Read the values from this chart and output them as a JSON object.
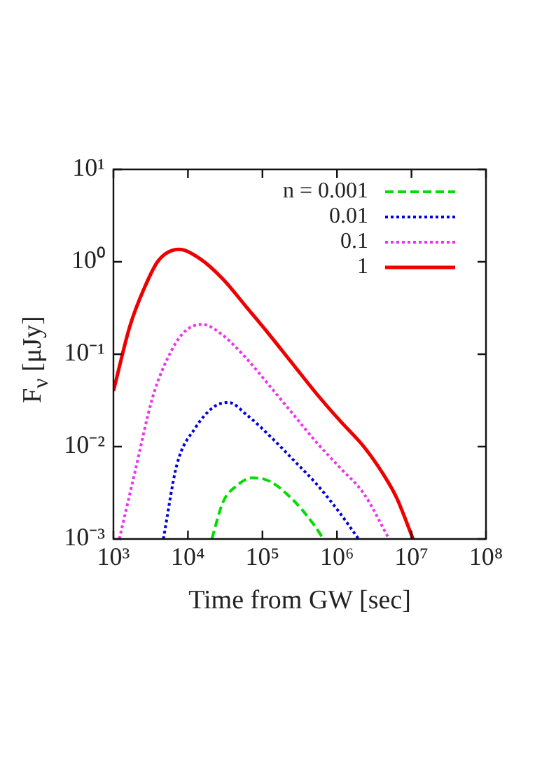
{
  "chart_data": {
    "type": "line",
    "xlabel": "Time from GW [sec]",
    "ylabel": "F$_{ν}$ [μJy]",
    "log": "xy",
    "legend": "top right",
    "xlim": [
      1000,
      100000000
    ],
    "ylim": [
      0.001,
      10
    ],
    "xticks": [
      {
        "value": 1000,
        "label": "10³"
      },
      {
        "value": 10000,
        "label": "10⁴"
      },
      {
        "value": 100000,
        "label": "10⁵"
      },
      {
        "value": 1000000,
        "label": "10⁶"
      },
      {
        "value": 10000000,
        "label": "10⁷"
      },
      {
        "value": 100000000,
        "label": "10⁸"
      }
    ],
    "yticks": [
      {
        "value": 0.001,
        "label": "10⁻³"
      },
      {
        "value": 0.01,
        "label": "10⁻²"
      },
      {
        "value": 0.1,
        "label": "10⁻¹"
      },
      {
        "value": 1,
        "label": "10⁰"
      },
      {
        "value": 10,
        "label": "10¹"
      }
    ],
    "series": [
      {
        "name": "n = 0.001",
        "color": "#00dd00",
        "line_style": "dashed",
        "x": [
          20900,
          29500,
          45700,
          72400,
          126000,
          263000,
          468000,
          661000
        ],
        "values": [
          0.001,
          0.0025,
          0.0038,
          0.0046,
          0.0042,
          0.0026,
          0.0015,
          0.001
        ]
      },
      {
        "name": "0.01",
        "color": "#0000dd",
        "line_style": "dotted",
        "x": [
          4680,
          7080,
          12600,
          22400,
          35500,
          61700,
          126000,
          263000,
          537000,
          1100000,
          1950000
        ],
        "values": [
          0.001,
          0.0063,
          0.016,
          0.027,
          0.03,
          0.022,
          0.013,
          0.0071,
          0.0039,
          0.0019,
          0.001
        ]
      },
      {
        "name": "0.1",
        "color": "#ee33ee",
        "line_style": "dotted",
        "x": [
          1200,
          1900,
          3390,
          6030,
          9330,
          15500,
          29500,
          61700,
          126000,
          263000,
          537000,
          1100000,
          2290000,
          5010000
        ],
        "values": [
          0.001,
          0.0049,
          0.035,
          0.11,
          0.18,
          0.21,
          0.16,
          0.089,
          0.045,
          0.022,
          0.011,
          0.0059,
          0.0031,
          0.001
        ]
      },
      {
        "name": "1",
        "color": "#ee0000",
        "line_style": "solid",
        "x": [
          1000,
          1660,
          2570,
          3980,
          7590,
          14500,
          29500,
          61700,
          126000,
          263000,
          537000,
          1100000,
          2290000,
          4070000,
          6310000,
          10500000
        ],
        "values": [
          0.04,
          0.2,
          0.51,
          1.02,
          1.36,
          1.08,
          0.65,
          0.32,
          0.16,
          0.076,
          0.037,
          0.019,
          0.01,
          0.0052,
          0.0028,
          0.001
        ]
      }
    ]
  }
}
